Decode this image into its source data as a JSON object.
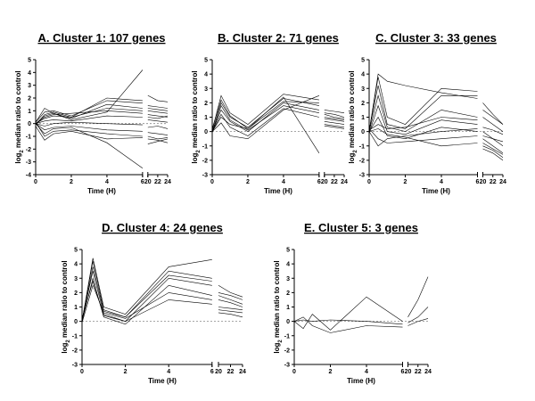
{
  "chart_data": [
    {
      "type": "line",
      "title": "A. Cluster 1: 107 genes",
      "xlabel": "Time (H)",
      "ylabel": "log2 median ratio to control",
      "x": [
        0,
        0.5,
        1,
        2,
        4,
        6,
        20,
        22,
        24
      ],
      "xticks": [
        0,
        2,
        4,
        6,
        20,
        22,
        24
      ],
      "ylim": [
        -4,
        5
      ],
      "yticks": [
        -4,
        -3,
        -2,
        -1,
        0,
        1,
        2,
        3,
        4,
        5
      ],
      "grid": false,
      "series": [
        {
          "values": [
            0.0,
            0.6,
            0.8,
            0.4,
            1.5,
            1.2,
            1.0,
            0.9,
            0.8
          ]
        },
        {
          "values": [
            0.1,
            0.9,
            1.0,
            0.6,
            1.8,
            1.6,
            1.2,
            1.1,
            1.0
          ]
        },
        {
          "values": [
            0.0,
            0.4,
            0.6,
            0.5,
            1.2,
            1.0,
            0.7,
            0.6,
            0.5
          ]
        },
        {
          "values": [
            -0.1,
            0.7,
            0.9,
            0.5,
            2.0,
            1.8,
            1.4,
            1.3,
            1.2
          ]
        },
        {
          "values": [
            0.0,
            -0.5,
            -0.3,
            -0.2,
            -0.5,
            -0.6,
            -0.7,
            -0.8,
            -0.9
          ]
        },
        {
          "values": [
            0.1,
            -1.0,
            -0.6,
            -0.5,
            -0.8,
            -1.0,
            -1.2,
            -1.3,
            -1.5
          ]
        },
        {
          "values": [
            -0.2,
            -1.3,
            -0.8,
            -0.6,
            -1.2,
            -1.1,
            -1.6,
            -1.4,
            -1.2
          ]
        },
        {
          "values": [
            0.0,
            0.2,
            0.3,
            0.2,
            0.6,
            0.5,
            0.3,
            0.2,
            0.1
          ]
        },
        {
          "values": [
            0.0,
            -0.2,
            0.0,
            0.1,
            0.0,
            -0.1,
            -0.3,
            -0.2,
            -0.4
          ]
        },
        {
          "values": [
            0.1,
            1.2,
            0.8,
            0.3,
            0.9,
            4.2,
            2.2,
            1.8,
            1.7
          ]
        },
        {
          "values": [
            0.0,
            -0.8,
            -0.4,
            -0.3,
            -1.5,
            -3.5,
            -1.0,
            -1.2,
            -1.1
          ]
        },
        {
          "values": [
            0.0,
            0.5,
            0.7,
            0.8,
            1.0,
            0.8,
            0.5,
            0.4,
            0.6
          ]
        }
      ]
    },
    {
      "type": "line",
      "title": "B. Cluster 2: 71 genes",
      "xlabel": "Time (H)",
      "ylabel": "log2 median ratio to control",
      "x": [
        0,
        0.5,
        1,
        2,
        4,
        6,
        20,
        22,
        24
      ],
      "xticks": [
        0,
        2,
        4,
        6,
        20,
        22,
        24
      ],
      "ylim": [
        -3,
        5
      ],
      "yticks": [
        -3,
        -2,
        -1,
        0,
        1,
        2,
        3,
        4,
        5
      ],
      "grid": false,
      "series": [
        {
          "values": [
            0.0,
            2.0,
            1.0,
            0.3,
            2.3,
            1.8,
            1.2,
            1.0,
            0.9
          ]
        },
        {
          "values": [
            0.1,
            2.5,
            1.3,
            0.5,
            2.6,
            2.2,
            1.5,
            1.4,
            1.3
          ]
        },
        {
          "values": [
            0.0,
            1.5,
            0.7,
            0.0,
            2.0,
            1.5,
            0.9,
            0.8,
            0.7
          ]
        },
        {
          "values": [
            -0.1,
            1.8,
            0.8,
            0.1,
            1.8,
            1.3,
            0.7,
            0.6,
            0.5
          ]
        },
        {
          "values": [
            0.0,
            1.2,
            0.3,
            -0.3,
            1.6,
            1.0,
            0.5,
            0.4,
            0.3
          ]
        },
        {
          "values": [
            0.2,
            2.2,
            1.1,
            0.2,
            2.1,
            2.0,
            1.3,
            1.2,
            1.0
          ]
        },
        {
          "values": [
            0.0,
            0.6,
            -0.3,
            -0.5,
            1.5,
            2.5,
            1.0,
            0.9,
            0.8
          ]
        },
        {
          "values": [
            0.0,
            1.0,
            0.5,
            0.2,
            2.4,
            -1.5,
            0.4,
            0.3,
            0.2
          ]
        }
      ]
    },
    {
      "type": "line",
      "title": "C. Cluster 3: 33 genes",
      "xlabel": "Time (H)",
      "ylabel": "log2 median ratio to control",
      "x": [
        0,
        0.5,
        1,
        2,
        4,
        6,
        20,
        22,
        24
      ],
      "xticks": [
        0,
        2,
        4,
        6,
        20,
        22,
        24
      ],
      "ylim": [
        -3,
        5
      ],
      "yticks": [
        -3,
        -2,
        -1,
        0,
        1,
        2,
        3,
        4,
        5
      ],
      "grid": false,
      "series": [
        {
          "values": [
            0.0,
            3.8,
            1.0,
            0.5,
            3.0,
            2.8,
            2.0,
            1.2,
            0.5
          ]
        },
        {
          "values": [
            0.1,
            3.2,
            0.5,
            0.2,
            2.5,
            2.5,
            1.0,
            0.5,
            0.0
          ]
        },
        {
          "values": [
            0.0,
            2.5,
            0.3,
            0.0,
            1.5,
            1.0,
            0.0,
            -0.5,
            -1.0
          ]
        },
        {
          "values": [
            -0.1,
            1.8,
            0.0,
            -0.2,
            0.8,
            0.5,
            -0.5,
            -1.0,
            -1.5
          ]
        },
        {
          "values": [
            0.0,
            1.0,
            -0.3,
            -0.5,
            0.3,
            0.0,
            -1.0,
            -1.3,
            -1.8
          ]
        },
        {
          "values": [
            0.2,
            -0.5,
            -0.8,
            -0.7,
            -0.5,
            -0.3,
            -0.8,
            -1.2,
            -1.6
          ]
        },
        {
          "values": [
            0.0,
            -1.0,
            -0.5,
            -0.3,
            0.0,
            0.2,
            -0.3,
            -0.5,
            -0.7
          ]
        },
        {
          "values": [
            0.1,
            0.5,
            0.2,
            0.3,
            1.0,
            0.8,
            0.3,
            0.1,
            -0.2
          ]
        },
        {
          "values": [
            0.0,
            4.0,
            3.5,
            3.2,
            2.7,
            2.3,
            1.5,
            1.0,
            0.5
          ]
        },
        {
          "values": [
            0.0,
            0.2,
            -0.2,
            -0.4,
            -1.0,
            -0.8,
            -1.2,
            -1.5,
            -2.0
          ]
        }
      ]
    },
    {
      "type": "line",
      "title": "D. Cluster 4: 24 genes",
      "xlabel": "Time (H)",
      "ylabel": "log2 median ratio to control",
      "x": [
        0,
        0.5,
        1,
        2,
        4,
        6,
        20,
        22,
        24
      ],
      "xticks": [
        0,
        2,
        4,
        6,
        20,
        22,
        24
      ],
      "ylim": [
        -3,
        5
      ],
      "yticks": [
        -3,
        -2,
        -1,
        0,
        1,
        2,
        3,
        4,
        5
      ],
      "grid": false,
      "series": [
        {
          "values": [
            0.0,
            4.2,
            0.8,
            0.3,
            3.5,
            3.0,
            2.0,
            1.8,
            1.5
          ]
        },
        {
          "values": [
            0.1,
            3.5,
            0.5,
            0.0,
            3.0,
            2.5,
            1.5,
            1.3,
            1.0
          ]
        },
        {
          "values": [
            0.0,
            3.0,
            0.3,
            -0.2,
            2.5,
            1.8,
            1.0,
            0.9,
            0.8
          ]
        },
        {
          "values": [
            -0.1,
            2.5,
            0.6,
            0.2,
            2.0,
            1.5,
            0.8,
            0.7,
            0.6
          ]
        },
        {
          "values": [
            0.0,
            4.4,
            1.0,
            0.5,
            3.8,
            4.3,
            2.5,
            2.0,
            1.7
          ]
        },
        {
          "values": [
            0.2,
            2.8,
            0.4,
            0.0,
            1.5,
            1.2,
            0.6,
            0.5,
            0.3
          ]
        },
        {
          "values": [
            0.0,
            3.8,
            0.7,
            0.3,
            3.2,
            2.8,
            1.8,
            1.5,
            1.2
          ]
        }
      ]
    },
    {
      "type": "line",
      "title": "E. Cluster 5: 3 genes",
      "xlabel": "Time (H)",
      "ylabel": "log2 median ratio to control",
      "x": [
        0,
        0.5,
        1,
        2,
        4,
        6,
        20,
        22,
        24
      ],
      "xticks": [
        0,
        2,
        4,
        6,
        20,
        22,
        24
      ],
      "ylim": [
        -3,
        5
      ],
      "yticks": [
        -3,
        -2,
        -1,
        0,
        1,
        2,
        3,
        4,
        5
      ],
      "grid": false,
      "series": [
        {
          "values": [
            0.0,
            -0.5,
            0.5,
            -0.6,
            1.7,
            0.0,
            0.3,
            1.5,
            3.1
          ]
        },
        {
          "values": [
            0.0,
            0.3,
            -0.3,
            -0.8,
            -0.3,
            -0.4,
            -0.3,
            0.0,
            0.2
          ]
        },
        {
          "values": [
            0.0,
            0.1,
            0.0,
            0.1,
            0.0,
            -0.2,
            -0.1,
            0.3,
            1.0
          ]
        }
      ]
    }
  ]
}
